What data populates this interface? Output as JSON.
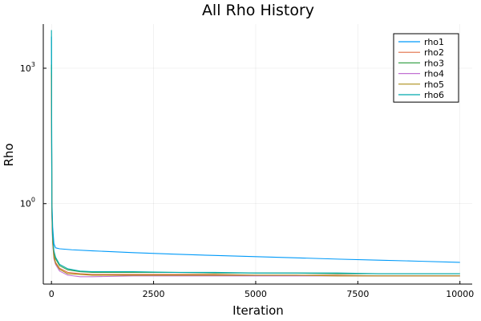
{
  "chart_data": {
    "type": "line",
    "title": "All Rho History",
    "xlabel": "Iteration",
    "ylabel": "Rho",
    "x_scale": "linear",
    "y_scale": "log10",
    "xlim": [
      -200,
      10300
    ],
    "ylim": [
      0.0165,
      9500
    ],
    "x_ticks": [
      {
        "value": 0,
        "label": "0"
      },
      {
        "value": 2500,
        "label": "2500"
      },
      {
        "value": 5000,
        "label": "5000"
      },
      {
        "value": 7500,
        "label": "7500"
      },
      {
        "value": 10000,
        "label": "10000"
      }
    ],
    "y_ticks": [
      {
        "value": 1,
        "base": "10",
        "exp": "0"
      },
      {
        "value": 1000,
        "base": "10",
        "exp": "3"
      }
    ],
    "grid": true,
    "legend": "top-right",
    "series": [
      {
        "name": "rho1",
        "color": "#009af9",
        "x": [
          0,
          10,
          30,
          60,
          100,
          200,
          500,
          1000,
          2000,
          3000,
          4000,
          5000,
          6000,
          7000,
          8000,
          9000,
          10000
        ],
        "y": [
          5000,
          1.2,
          0.3,
          0.13,
          0.105,
          0.1,
          0.095,
          0.09,
          0.082,
          0.076,
          0.071,
          0.067,
          0.063,
          0.059,
          0.056,
          0.053,
          0.05
        ]
      },
      {
        "name": "rho2",
        "color": "#e26f46",
        "x": [
          0,
          10,
          30,
          60,
          100,
          200,
          400,
          700,
          1000,
          2000,
          3000,
          4000,
          5000,
          6000,
          7000,
          8000,
          9000,
          10000
        ],
        "y": [
          800,
          0.7,
          0.15,
          0.07,
          0.05,
          0.037,
          0.03,
          0.028,
          0.027,
          0.027,
          0.027,
          0.027,
          0.026,
          0.026,
          0.026,
          0.025,
          0.025,
          0.025
        ]
      },
      {
        "name": "rho3",
        "color": "#3da44d",
        "x": [
          0,
          10,
          30,
          60,
          100,
          200,
          400,
          700,
          1000,
          2000,
          3000,
          4000,
          5000,
          6000,
          7000,
          8000,
          9000,
          10000
        ],
        "y": [
          1200,
          0.8,
          0.18,
          0.08,
          0.06,
          0.042,
          0.034,
          0.031,
          0.03,
          0.03,
          0.03,
          0.029,
          0.029,
          0.029,
          0.028,
          0.028,
          0.028,
          0.028
        ]
      },
      {
        "name": "rho4",
        "color": "#c271d2",
        "x": [
          0,
          10,
          30,
          60,
          100,
          200,
          400,
          700,
          1000,
          2000,
          3000,
          4000,
          5000,
          6000,
          7000,
          8000,
          9000,
          10000
        ],
        "y": [
          600,
          0.6,
          0.13,
          0.06,
          0.045,
          0.032,
          0.026,
          0.024,
          0.024,
          0.025,
          0.025,
          0.025,
          0.025,
          0.025,
          0.025,
          0.025,
          0.025,
          0.025
        ]
      },
      {
        "name": "rho5",
        "color": "#ac8d18",
        "x": [
          0,
          10,
          30,
          60,
          100,
          200,
          400,
          700,
          1000,
          2000,
          3000,
          4000,
          5000,
          6000,
          7000,
          8000,
          9000,
          10000
        ],
        "y": [
          700,
          0.65,
          0.14,
          0.065,
          0.048,
          0.035,
          0.028,
          0.027,
          0.026,
          0.026,
          0.026,
          0.026,
          0.026,
          0.026,
          0.025,
          0.025,
          0.025,
          0.025
        ]
      },
      {
        "name": "rho6",
        "color": "#00a9ad",
        "x": [
          0,
          10,
          30,
          60,
          100,
          200,
          400,
          700,
          1000,
          2000,
          3000,
          4000,
          5000,
          6000,
          7000,
          8000,
          9000,
          10000
        ],
        "y": [
          7000,
          1.0,
          0.2,
          0.09,
          0.065,
          0.045,
          0.036,
          0.032,
          0.031,
          0.031,
          0.03,
          0.03,
          0.029,
          0.029,
          0.029,
          0.028,
          0.028,
          0.028
        ]
      }
    ]
  }
}
